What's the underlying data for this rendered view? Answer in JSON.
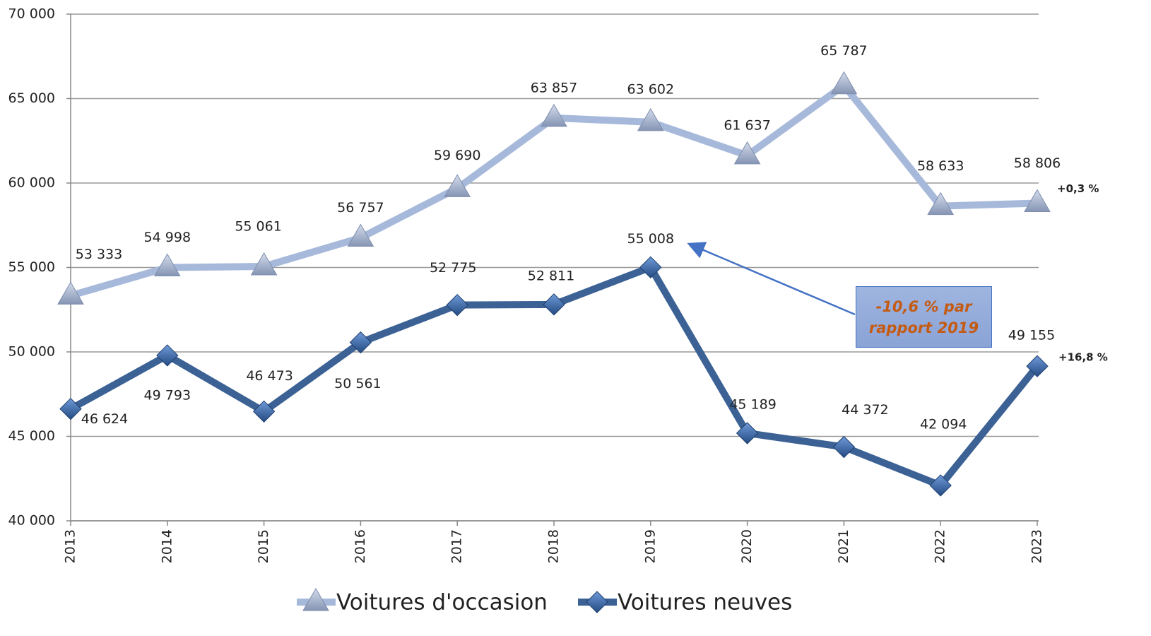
{
  "chart_data": {
    "type": "line",
    "categories": [
      "2013",
      "2014",
      "2015",
      "2016",
      "2017",
      "2018",
      "2019",
      "2020",
      "2021",
      "2022",
      "2023"
    ],
    "series": [
      {
        "name": "Voitures d'occasion",
        "color": "#a7b9da",
        "marker": "triangle",
        "values": [
          53333,
          54998,
          55061,
          56757,
          59690,
          63857,
          63602,
          61637,
          65787,
          58633,
          58806
        ],
        "value_labels": [
          "53 333",
          "54 998",
          "55 061",
          "56 757",
          "59 690",
          "63 857",
          "63 602",
          "61 637",
          "65 787",
          "58 633",
          "58 806"
        ]
      },
      {
        "name": "Voitures neuves",
        "color": "#3b6195",
        "marker": "diamond",
        "values": [
          46624,
          49793,
          46473,
          50561,
          52775,
          52811,
          55008,
          45189,
          44372,
          42094,
          49155
        ],
        "value_labels": [
          "46 624",
          "49 793",
          "46 473",
          "50 561",
          "52 775",
          "52 811",
          "55 008",
          "45 189",
          "44 372",
          "42 094",
          "49 155"
        ]
      }
    ],
    "ylim": [
      40000,
      70000
    ],
    "yticks": [
      {
        "value": 40000,
        "label": "40 000"
      },
      {
        "value": 45000,
        "label": "45 000"
      },
      {
        "value": 50000,
        "label": "50 000"
      },
      {
        "value": 55000,
        "label": "55 000"
      },
      {
        "value": 60000,
        "label": "60 000"
      },
      {
        "value": 65000,
        "label": "65 000"
      },
      {
        "value": 70000,
        "label": "70 000"
      }
    ],
    "grid": true,
    "legend": "bottom",
    "annotations": [
      {
        "text": "+0,3 %"
      },
      {
        "text": "+16,8 %"
      },
      {
        "text": "-10,6 % par rapport 2019",
        "color": "#c55a11"
      }
    ]
  }
}
